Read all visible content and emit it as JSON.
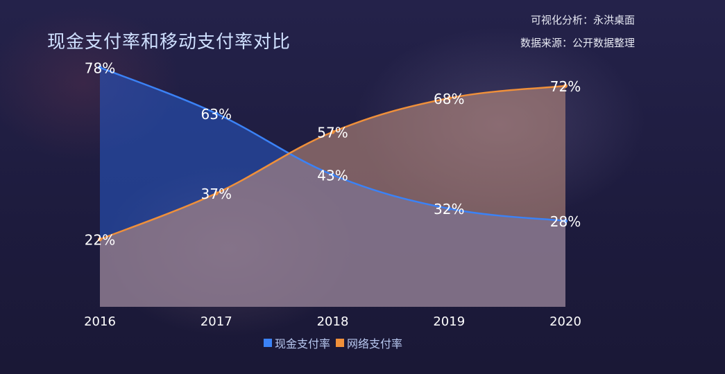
{
  "title": "现金支付率和移动支付率对比",
  "credits": [
    "可视化分析：永洪桌面",
    "数据来源：公开数据整理"
  ],
  "chart_data": {
    "type": "area",
    "categories": [
      "2016",
      "2017",
      "2018",
      "2019",
      "2020"
    ],
    "value_suffix": "%",
    "ylim": [
      0,
      100
    ],
    "grid": false,
    "legend_position": "bottom-center",
    "series": [
      {
        "name": "现金支付率",
        "values": [
          78,
          63,
          43,
          32,
          28
        ],
        "color": "#3b82f6"
      },
      {
        "name": "网络支付率",
        "values": [
          22,
          37,
          57,
          68,
          72
        ],
        "color": "#f0903a"
      }
    ]
  }
}
